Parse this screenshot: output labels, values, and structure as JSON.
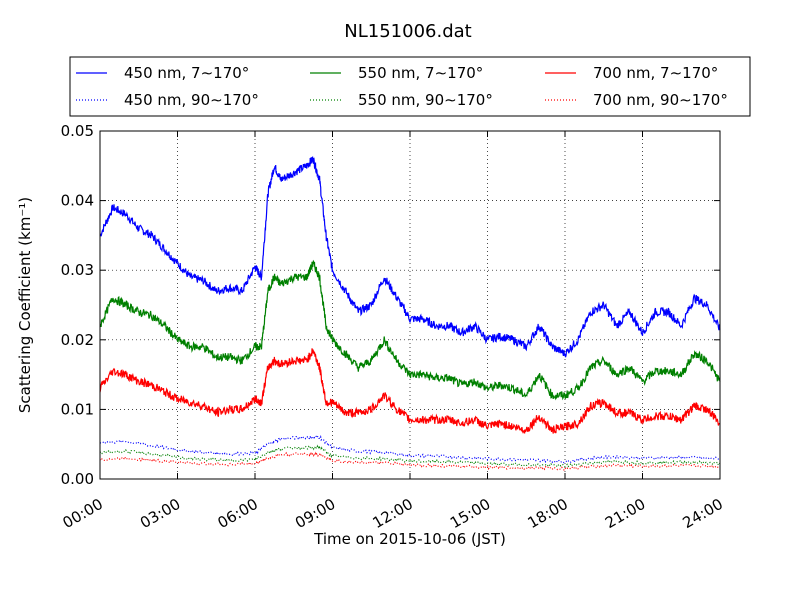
{
  "chart_data": {
    "type": "line",
    "title": "NL151006.dat",
    "xlabel": "Time on 2015-10-06 (JST)",
    "ylabel": "Scattering Coefficient (km⁻¹)",
    "xlim": [
      "00:00",
      "24:00"
    ],
    "ylim": [
      0,
      0.05
    ],
    "x_ticks": [
      "00:00",
      "03:00",
      "06:00",
      "09:00",
      "12:00",
      "15:00",
      "18:00",
      "21:00",
      "24:00"
    ],
    "y_ticks": [
      "0.00",
      "0.01",
      "0.02",
      "0.03",
      "0.04",
      "0.05"
    ],
    "grid": true,
    "legend_position": "top",
    "series": [
      {
        "name": "450 nm, 7∼170°",
        "color": "#0000ff",
        "style": "solid",
        "x": [
          "00:00",
          "00:30",
          "01:00",
          "01:30",
          "02:00",
          "02:30",
          "03:00",
          "03:30",
          "04:00",
          "04:30",
          "05:00",
          "05:30",
          "06:00",
          "06:15",
          "06:30",
          "06:45",
          "07:00",
          "07:30",
          "08:00",
          "08:15",
          "08:30",
          "08:45",
          "09:00",
          "09:30",
          "10:00",
          "10:30",
          "11:00",
          "11:30",
          "12:00",
          "12:30",
          "13:00",
          "13:30",
          "14:00",
          "14:30",
          "15:00",
          "15:30",
          "16:00",
          "16:30",
          "17:00",
          "17:30",
          "18:00",
          "18:30",
          "19:00",
          "19:30",
          "20:00",
          "20:30",
          "21:00",
          "21:30",
          "22:00",
          "22:30",
          "23:00",
          "23:30",
          "24:00"
        ],
        "y": [
          0.035,
          0.039,
          0.038,
          0.036,
          0.035,
          0.033,
          0.031,
          0.029,
          0.0285,
          0.027,
          0.0275,
          0.027,
          0.0305,
          0.029,
          0.041,
          0.045,
          0.043,
          0.044,
          0.045,
          0.046,
          0.043,
          0.035,
          0.03,
          0.027,
          0.024,
          0.025,
          0.029,
          0.026,
          0.023,
          0.023,
          0.022,
          0.022,
          0.021,
          0.022,
          0.02,
          0.0205,
          0.02,
          0.019,
          0.022,
          0.019,
          0.018,
          0.02,
          0.024,
          0.025,
          0.022,
          0.024,
          0.021,
          0.024,
          0.024,
          0.022,
          0.026,
          0.025,
          0.0215
        ]
      },
      {
        "name": "450 nm, 90∼170°",
        "color": "#0000ff",
        "style": "dotted",
        "x": [
          "00:00",
          "01:00",
          "02:00",
          "03:00",
          "04:00",
          "05:00",
          "06:00",
          "06:30",
          "07:00",
          "08:00",
          "08:30",
          "09:00",
          "10:00",
          "11:00",
          "12:00",
          "13:00",
          "14:00",
          "15:00",
          "16:00",
          "17:00",
          "18:00",
          "19:00",
          "20:00",
          "21:00",
          "22:00",
          "23:00",
          "24:00"
        ],
        "y": [
          0.0052,
          0.0054,
          0.0048,
          0.0042,
          0.0038,
          0.0036,
          0.0037,
          0.005,
          0.0058,
          0.006,
          0.006,
          0.0045,
          0.004,
          0.0038,
          0.0034,
          0.0033,
          0.0031,
          0.0029,
          0.0028,
          0.0027,
          0.0025,
          0.003,
          0.0032,
          0.003,
          0.0031,
          0.0031,
          0.0029
        ]
      },
      {
        "name": "550 nm, 7∼170°",
        "color": "#008000",
        "style": "solid",
        "x": [
          "00:00",
          "00:30",
          "01:00",
          "01:30",
          "02:00",
          "02:30",
          "03:00",
          "03:30",
          "04:00",
          "04:30",
          "05:00",
          "05:30",
          "06:00",
          "06:15",
          "06:30",
          "06:45",
          "07:00",
          "07:30",
          "08:00",
          "08:15",
          "08:30",
          "08:45",
          "09:00",
          "09:30",
          "10:00",
          "10:30",
          "11:00",
          "11:30",
          "12:00",
          "12:30",
          "13:00",
          "13:30",
          "14:00",
          "14:30",
          "15:00",
          "15:30",
          "16:00",
          "16:30",
          "17:00",
          "17:30",
          "18:00",
          "18:30",
          "19:00",
          "19:30",
          "20:00",
          "20:30",
          "21:00",
          "21:30",
          "22:00",
          "22:30",
          "23:00",
          "23:30",
          "24:00"
        ],
        "y": [
          0.022,
          0.026,
          0.025,
          0.024,
          0.0235,
          0.022,
          0.02,
          0.019,
          0.019,
          0.0175,
          0.0175,
          0.017,
          0.019,
          0.019,
          0.027,
          0.029,
          0.028,
          0.029,
          0.029,
          0.031,
          0.029,
          0.022,
          0.02,
          0.018,
          0.016,
          0.017,
          0.02,
          0.017,
          0.015,
          0.015,
          0.0145,
          0.0145,
          0.0135,
          0.014,
          0.013,
          0.0135,
          0.013,
          0.012,
          0.015,
          0.012,
          0.012,
          0.013,
          0.016,
          0.017,
          0.015,
          0.016,
          0.014,
          0.0155,
          0.0155,
          0.015,
          0.018,
          0.017,
          0.014
        ]
      },
      {
        "name": "550 nm, 90∼170°",
        "color": "#008000",
        "style": "dotted",
        "x": [
          "00:00",
          "01:00",
          "02:00",
          "03:00",
          "04:00",
          "05:00",
          "06:00",
          "06:30",
          "07:00",
          "08:00",
          "08:30",
          "09:00",
          "10:00",
          "11:00",
          "12:00",
          "13:00",
          "14:00",
          "15:00",
          "16:00",
          "17:00",
          "18:00",
          "19:00",
          "20:00",
          "21:00",
          "22:00",
          "23:00",
          "24:00"
        ],
        "y": [
          0.0038,
          0.004,
          0.0036,
          0.0031,
          0.0028,
          0.0027,
          0.0028,
          0.0038,
          0.0044,
          0.0045,
          0.0045,
          0.0033,
          0.003,
          0.0029,
          0.0026,
          0.0025,
          0.0024,
          0.0022,
          0.0021,
          0.002,
          0.0019,
          0.0023,
          0.0025,
          0.0023,
          0.0024,
          0.0024,
          0.0022
        ]
      },
      {
        "name": "700 nm, 7∼170°",
        "color": "#ff0000",
        "style": "solid",
        "x": [
          "00:00",
          "00:30",
          "01:00",
          "01:30",
          "02:00",
          "02:30",
          "03:00",
          "03:30",
          "04:00",
          "04:30",
          "05:00",
          "05:30",
          "06:00",
          "06:15",
          "06:30",
          "06:45",
          "07:00",
          "07:30",
          "08:00",
          "08:15",
          "08:30",
          "08:45",
          "09:00",
          "09:30",
          "10:00",
          "10:30",
          "11:00",
          "11:30",
          "12:00",
          "12:30",
          "13:00",
          "13:30",
          "14:00",
          "14:30",
          "15:00",
          "15:30",
          "16:00",
          "16:30",
          "17:00",
          "17:30",
          "18:00",
          "18:30",
          "19:00",
          "19:30",
          "20:00",
          "20:30",
          "21:00",
          "21:30",
          "22:00",
          "22:30",
          "23:00",
          "23:30",
          "24:00"
        ],
        "y": [
          0.013,
          0.0155,
          0.015,
          0.014,
          0.0135,
          0.0125,
          0.0115,
          0.011,
          0.0105,
          0.0095,
          0.01,
          0.01,
          0.0115,
          0.011,
          0.016,
          0.017,
          0.0165,
          0.017,
          0.017,
          0.0185,
          0.016,
          0.011,
          0.011,
          0.0095,
          0.0095,
          0.01,
          0.012,
          0.01,
          0.0085,
          0.0085,
          0.0085,
          0.0085,
          0.008,
          0.0085,
          0.0075,
          0.008,
          0.0075,
          0.007,
          0.009,
          0.007,
          0.0075,
          0.008,
          0.0105,
          0.011,
          0.0095,
          0.0095,
          0.0085,
          0.009,
          0.009,
          0.0085,
          0.0105,
          0.01,
          0.008
        ]
      },
      {
        "name": "700 nm, 90∼170°",
        "color": "#ff0000",
        "style": "dotted",
        "x": [
          "00:00",
          "01:00",
          "02:00",
          "03:00",
          "04:00",
          "05:00",
          "06:00",
          "06:30",
          "07:00",
          "08:00",
          "08:30",
          "09:00",
          "10:00",
          "11:00",
          "12:00",
          "13:00",
          "14:00",
          "15:00",
          "16:00",
          "17:00",
          "18:00",
          "19:00",
          "20:00",
          "21:00",
          "22:00",
          "23:00",
          "24:00"
        ],
        "y": [
          0.0028,
          0.003,
          0.0027,
          0.0024,
          0.0022,
          0.0021,
          0.0022,
          0.003,
          0.0035,
          0.0036,
          0.0035,
          0.0026,
          0.0024,
          0.0023,
          0.002,
          0.0019,
          0.0018,
          0.0017,
          0.0016,
          0.0016,
          0.0015,
          0.0018,
          0.002,
          0.0018,
          0.0019,
          0.0019,
          0.0018
        ]
      }
    ]
  }
}
